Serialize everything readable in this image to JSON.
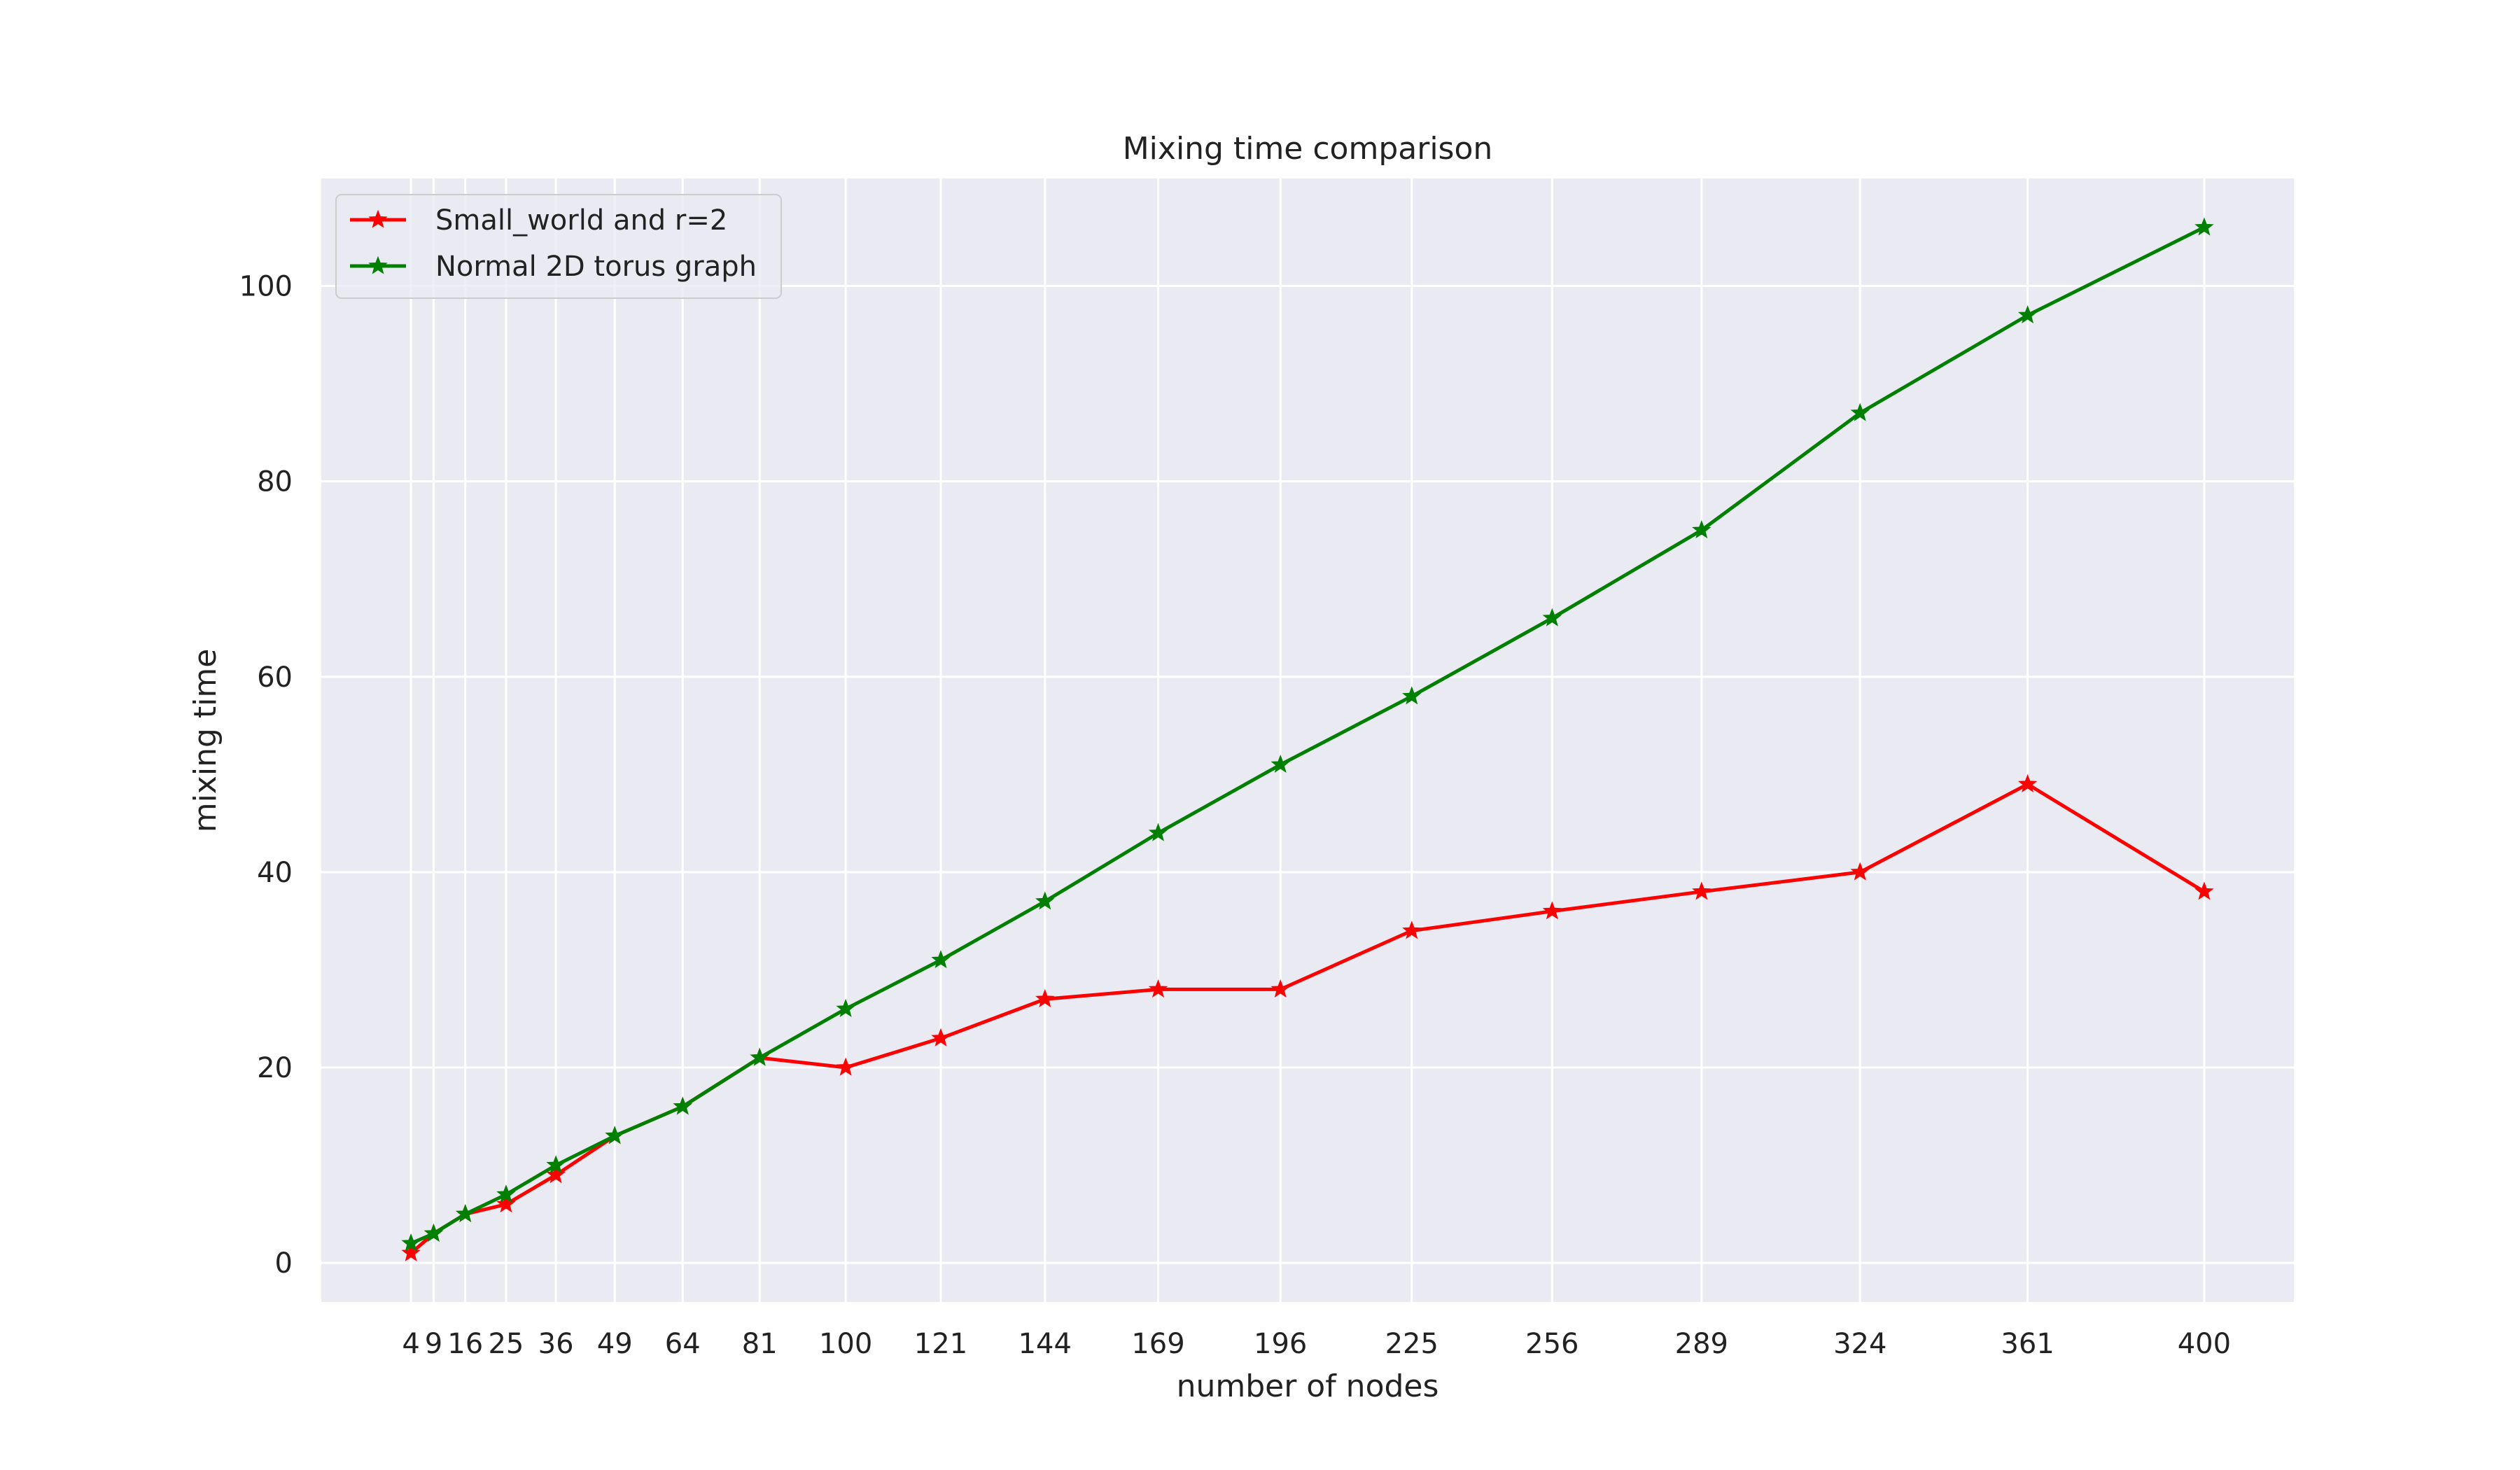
{
  "chart_data": {
    "type": "line",
    "title": "Mixing time comparison",
    "xlabel": "number of nodes",
    "ylabel": "mixing time",
    "x": [
      4,
      9,
      16,
      25,
      36,
      49,
      64,
      81,
      100,
      121,
      144,
      169,
      196,
      225,
      256,
      289,
      324,
      361,
      400
    ],
    "x_tick_labels": [
      "4",
      "9",
      "16",
      "25",
      "36",
      "49",
      "64",
      "81",
      "100",
      "121",
      "144",
      "169",
      "196",
      "225",
      "256",
      "289",
      "324",
      "361",
      "400"
    ],
    "xlim": [
      -15.8,
      419.8
    ],
    "ylim": [
      -4,
      111
    ],
    "yticks": [
      0,
      20,
      40,
      60,
      80,
      100
    ],
    "y_tick_labels": [
      "0",
      "20",
      "40",
      "60",
      "80",
      "100"
    ],
    "grid": true,
    "legend_position": "top-left",
    "background": "#eaeaf2",
    "series": [
      {
        "name": "Small_world and r=2",
        "color": "#ff0000",
        "marker": "star",
        "values": [
          1,
          3,
          5,
          6,
          9,
          13,
          16,
          21,
          20,
          23,
          27,
          28,
          28,
          34,
          36,
          38,
          40,
          49,
          38
        ]
      },
      {
        "name": "Normal 2D torus graph",
        "color": "#008000",
        "marker": "star",
        "values": [
          2,
          3,
          5,
          7,
          10,
          13,
          16,
          21,
          26,
          31,
          37,
          44,
          51,
          58,
          66,
          75,
          87,
          97,
          106
        ]
      }
    ]
  }
}
